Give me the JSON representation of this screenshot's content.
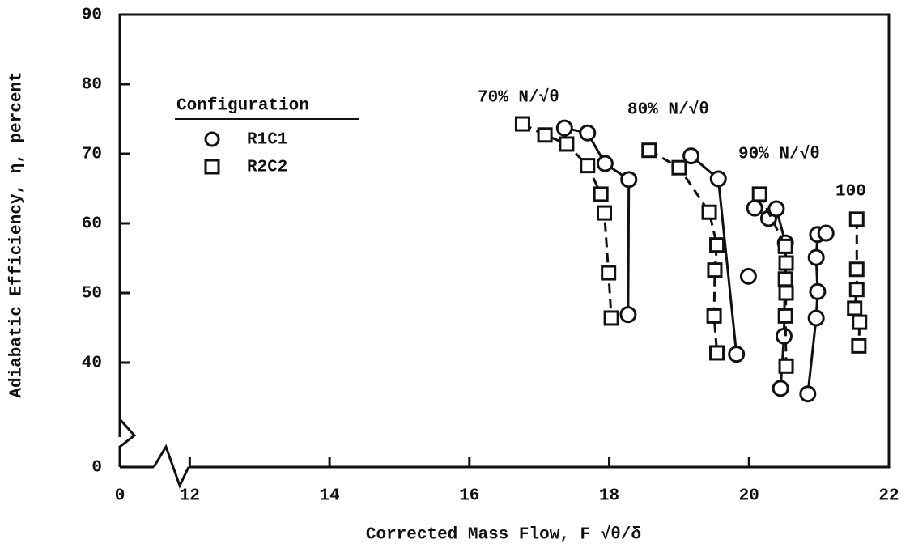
{
  "chart_data": {
    "type": "line",
    "x_label": "Corrected Mass Flow, F √θ/δ",
    "y_label": "Adiabatic Efficiency, η, percent",
    "legend_title": "Configuration",
    "x_origin_label": "0",
    "y_origin_label": "0",
    "xlim": [
      11,
      22
    ],
    "xticks": [
      12,
      14,
      16,
      18,
      20,
      22
    ],
    "ylim": [
      25,
      90
    ],
    "yticks": [
      40,
      50,
      60,
      70,
      80,
      90
    ],
    "speed_labels": [
      "70% N/√θ",
      "80% N/√θ",
      "90% N/√θ",
      "100"
    ],
    "series": [
      {
        "name": "R1C1",
        "marker": "circle",
        "dashed": false,
        "color": "#111",
        "lines": [
          {
            "x": [
              17.36,
              17.69,
              17.94,
              18.28,
              18.27
            ],
            "y": [
              73.7,
              73.0,
              68.6,
              66.3,
              46.9
            ]
          },
          {
            "x": [
              19.17,
              19.56,
              19.82
            ],
            "y": [
              69.7,
              66.4,
              41.2
            ]
          },
          {
            "x": [
              19.99
            ],
            "y": [
              52.4
            ]
          },
          {
            "x": [
              20.08,
              20.28,
              20.39,
              20.52,
              20.5,
              20.45
            ],
            "y": [
              62.2,
              60.7,
              62.1,
              57.2,
              43.8,
              36.3
            ]
          },
          {
            "x": [
              20.84,
              20.96,
              20.98,
              20.96,
              20.98,
              21.1
            ],
            "y": [
              35.5,
              46.4,
              50.2,
              55.1,
              58.4,
              58.6
            ]
          }
        ]
      },
      {
        "name": "R2C2",
        "marker": "square",
        "dashed": true,
        "color": "#111",
        "lines": [
          {
            "x": [
              16.76,
              17.08,
              17.39,
              17.69,
              17.88,
              17.93,
              17.99,
              18.03
            ],
            "y": [
              74.3,
              72.7,
              71.4,
              68.3,
              64.2,
              61.5,
              52.9,
              46.4
            ]
          },
          {
            "x": [
              18.57,
              19.0,
              19.43,
              19.54,
              19.51,
              19.5,
              19.54
            ],
            "y": [
              70.5,
              68.0,
              61.6,
              56.9,
              53.3,
              46.7,
              41.4
            ]
          },
          {
            "x": [
              20.15,
              20.52,
              20.53,
              20.52,
              20.53,
              20.52,
              20.53
            ],
            "y": [
              64.2,
              56.7,
              54.3,
              52.0,
              50.0,
              46.7,
              39.5
            ]
          },
          {
            "x": [
              21.54,
              21.54,
              21.54,
              21.51,
              21.58,
              21.57
            ],
            "y": [
              60.6,
              53.4,
              50.5,
              47.8,
              45.8,
              42.4
            ]
          }
        ]
      }
    ]
  }
}
